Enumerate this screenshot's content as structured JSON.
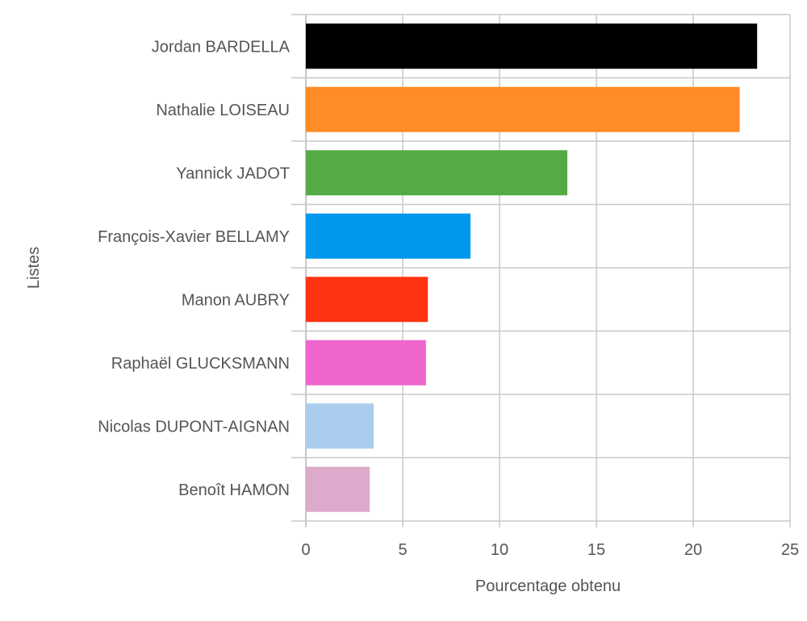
{
  "chart_data": {
    "type": "bar",
    "orientation": "horizontal",
    "title": "",
    "xlabel": "Pourcentage obtenu",
    "ylabel": "Listes",
    "xlim": [
      0,
      25
    ],
    "xticks": [
      "0",
      "5",
      "10",
      "15",
      "20",
      "25"
    ],
    "grid": true,
    "categories": [
      "Jordan BARDELLA",
      "Nathalie LOISEAU",
      "Yannick JADOT",
      "François-Xavier BELLAMY",
      "Manon AUBRY",
      "Raphaël GLUCKSMANN",
      "Nicolas DUPONT-AIGNAN",
      "Benoît HAMON"
    ],
    "values": [
      23.3,
      22.4,
      13.5,
      8.5,
      6.3,
      6.2,
      3.5,
      3.3
    ],
    "colors": [
      "#000000",
      "#ff8c26",
      "#55aa44",
      "#0099ee",
      "#ff3311",
      "#ee66cc",
      "#aaccee",
      "#ddaacc"
    ]
  }
}
